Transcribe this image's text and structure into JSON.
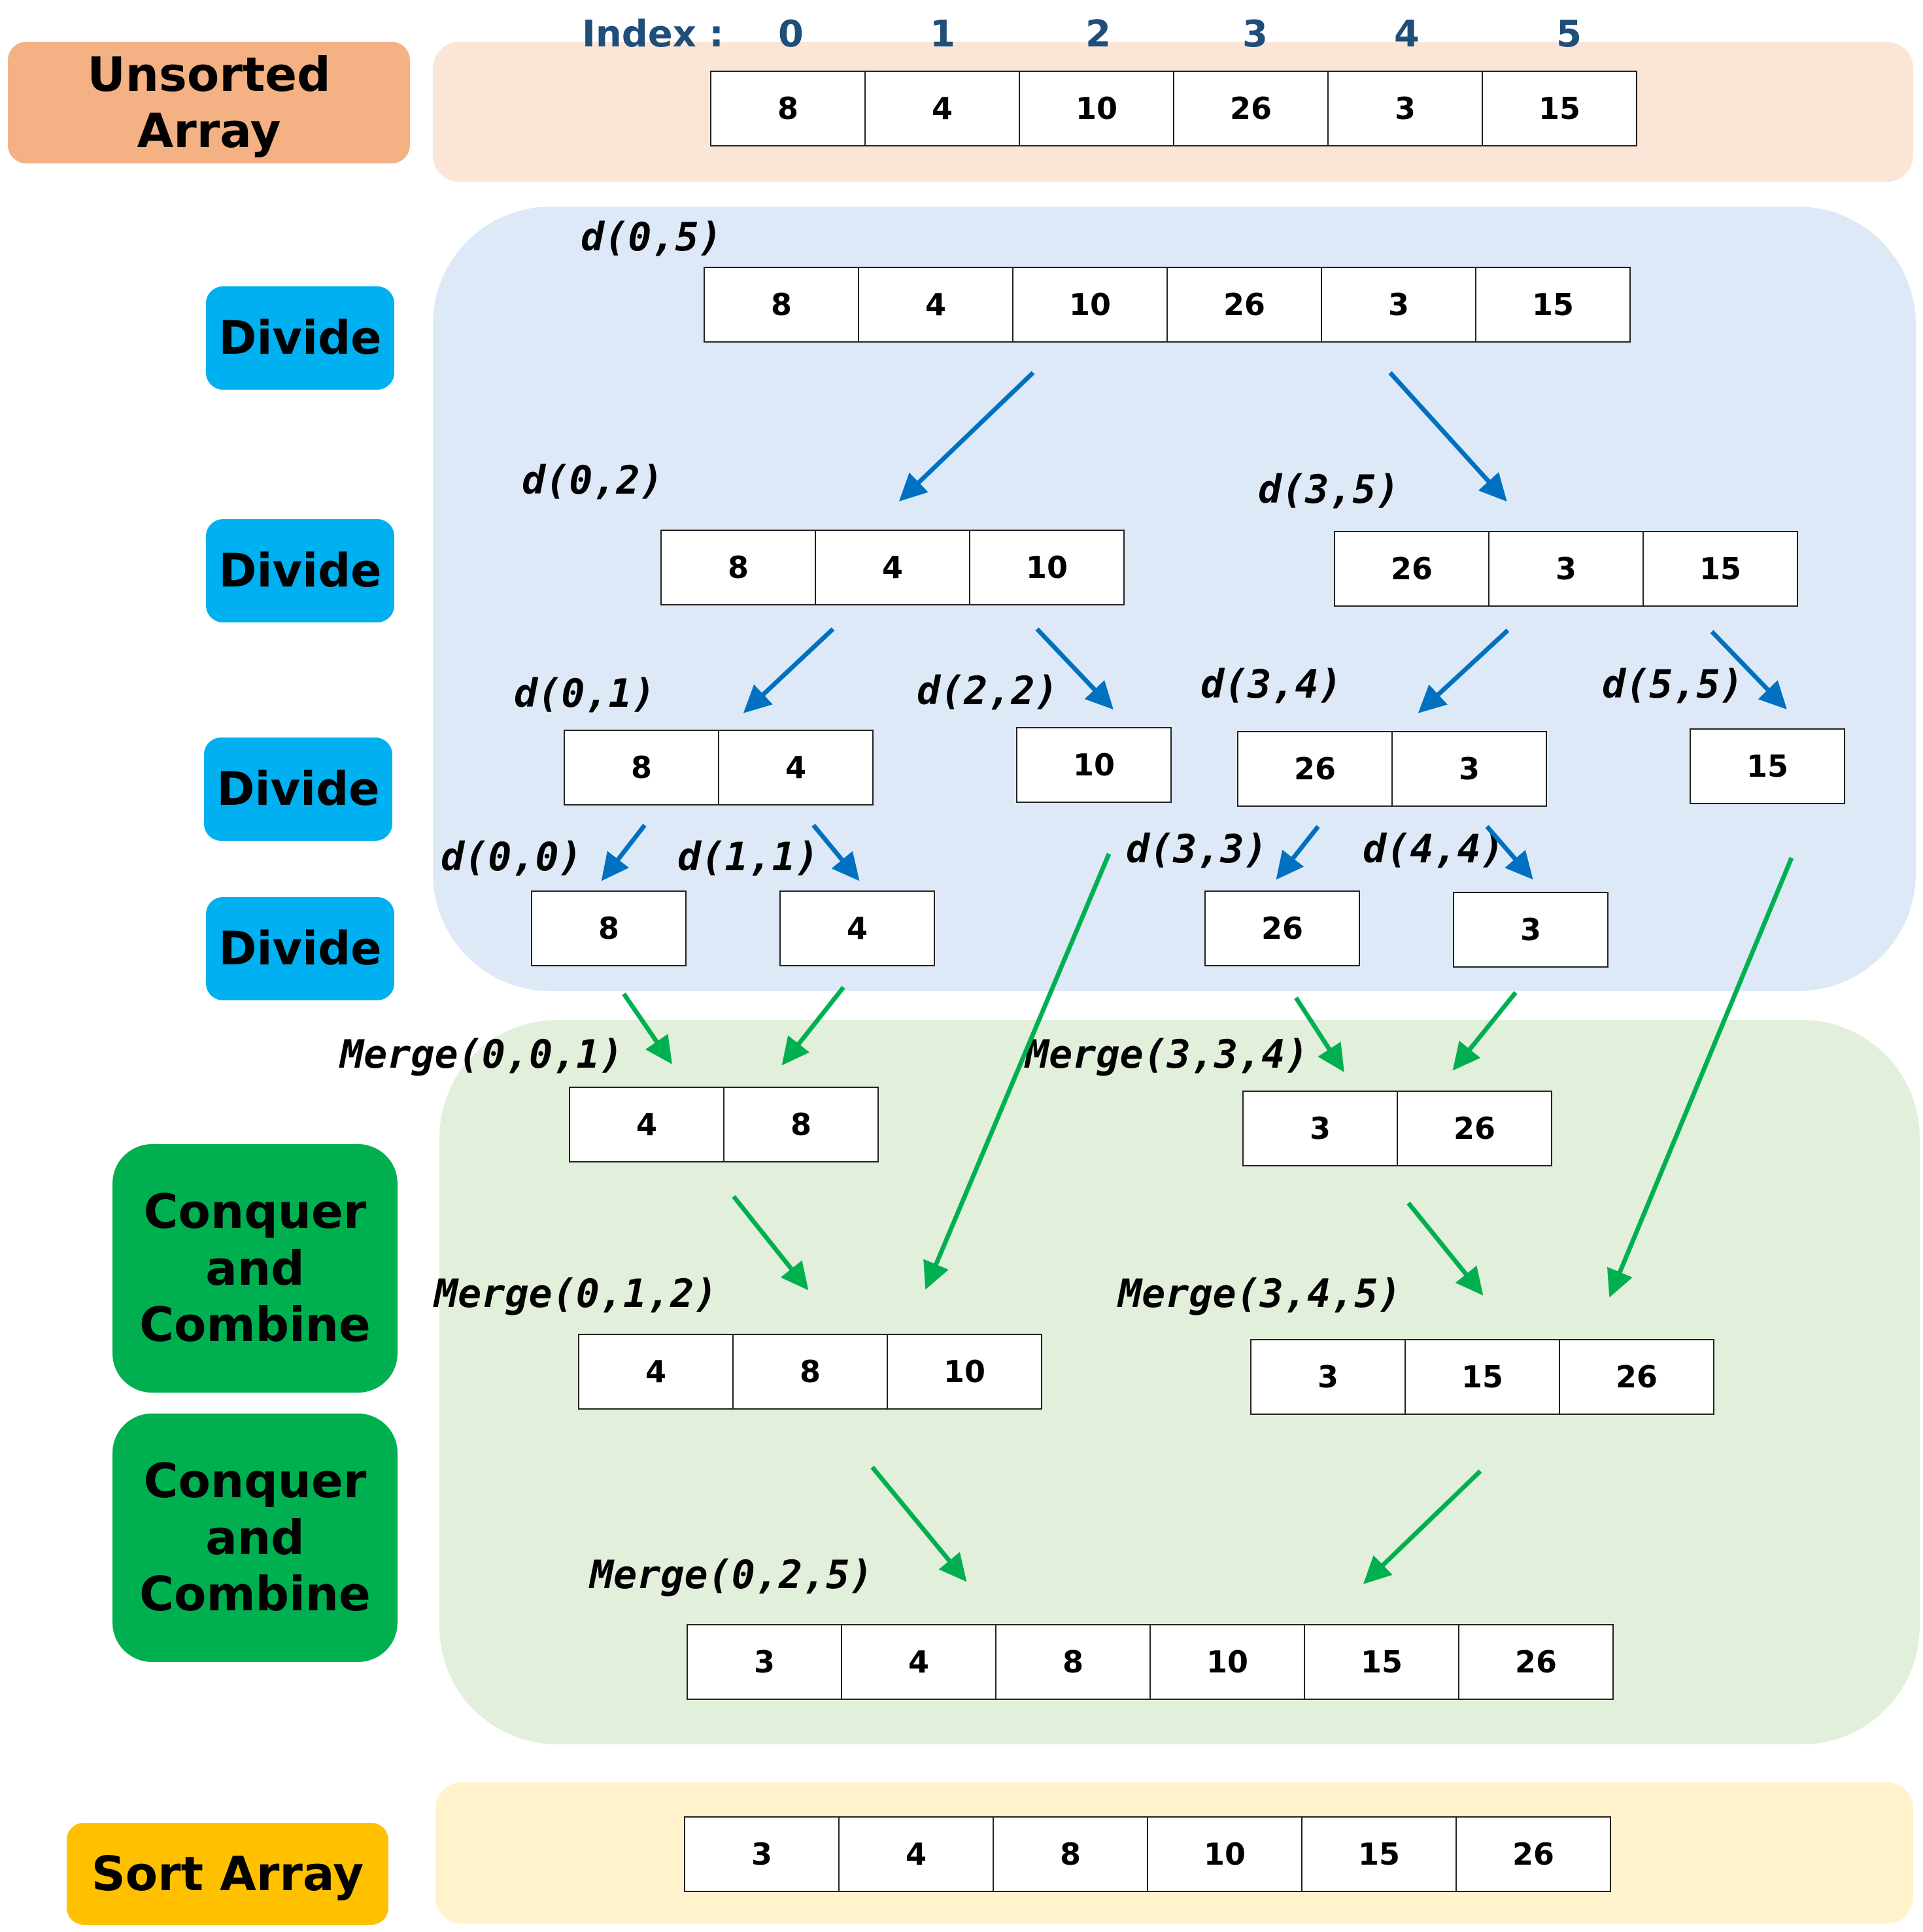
{
  "colors": {
    "unsorted_label": "#f4b183",
    "unsorted_panel": "#fbe5d6",
    "divide_label": "#00b0f0",
    "divide_panel": "#dde9f6",
    "conquer_label": "#00b050",
    "conquer_panel": "#e2efda",
    "sort_label": "#ffc000",
    "sort_panel": "#fff2cc",
    "divide_arrow": "#0070c0",
    "merge_arrow": "#00b050"
  },
  "labels": {
    "unsorted": "Unsorted Array",
    "divide": [
      "Divide",
      "Divide",
      "Divide",
      "Divide"
    ],
    "conquer": [
      [
        "Conquer",
        "and",
        "Combine"
      ],
      [
        "Conquer",
        "and",
        "Combine"
      ]
    ],
    "sort": "Sort Array"
  },
  "index_row": {
    "prefix": "Index :",
    "values": [
      "0",
      "1",
      "2",
      "3",
      "4",
      "5"
    ]
  },
  "arrays": {
    "unsorted": [
      "8",
      "4",
      "10",
      "26",
      "3",
      "15"
    ],
    "d05": [
      "8",
      "4",
      "10",
      "26",
      "3",
      "15"
    ],
    "d02": [
      "8",
      "4",
      "10"
    ],
    "d35": [
      "26",
      "3",
      "15"
    ],
    "d01": [
      "8",
      "4"
    ],
    "d22": [
      "10"
    ],
    "d34": [
      "26",
      "3"
    ],
    "d55": [
      "15"
    ],
    "d00": [
      "8"
    ],
    "d11": [
      "4"
    ],
    "d33": [
      "26"
    ],
    "d44": [
      "3"
    ],
    "m001": [
      "4",
      "8"
    ],
    "m334": [
      "3",
      "26"
    ],
    "m012": [
      "4",
      "8",
      "10"
    ],
    "m345": [
      "3",
      "15",
      "26"
    ],
    "m025": [
      "3",
      "4",
      "8",
      "10",
      "15",
      "26"
    ],
    "sorted": [
      "3",
      "4",
      "8",
      "10",
      "15",
      "26"
    ]
  },
  "calls": {
    "d05": "d(0,5)",
    "d02": "d(0,2)",
    "d35": "d(3,5)",
    "d01": "d(0,1)",
    "d22": "d(2,2)",
    "d34": "d(3,4)",
    "d55": "d(5,5)",
    "d00": "d(0,0)",
    "d11": "d(1,1)",
    "d33": "d(3,3)",
    "d44": "d(4,4)",
    "m001": "Merge(0,0,1)",
    "m334": "Merge(3,3,4)",
    "m012": "Merge(0,1,2)",
    "m345": "Merge(3,4,5)",
    "m025": "Merge(0,2,5)"
  }
}
